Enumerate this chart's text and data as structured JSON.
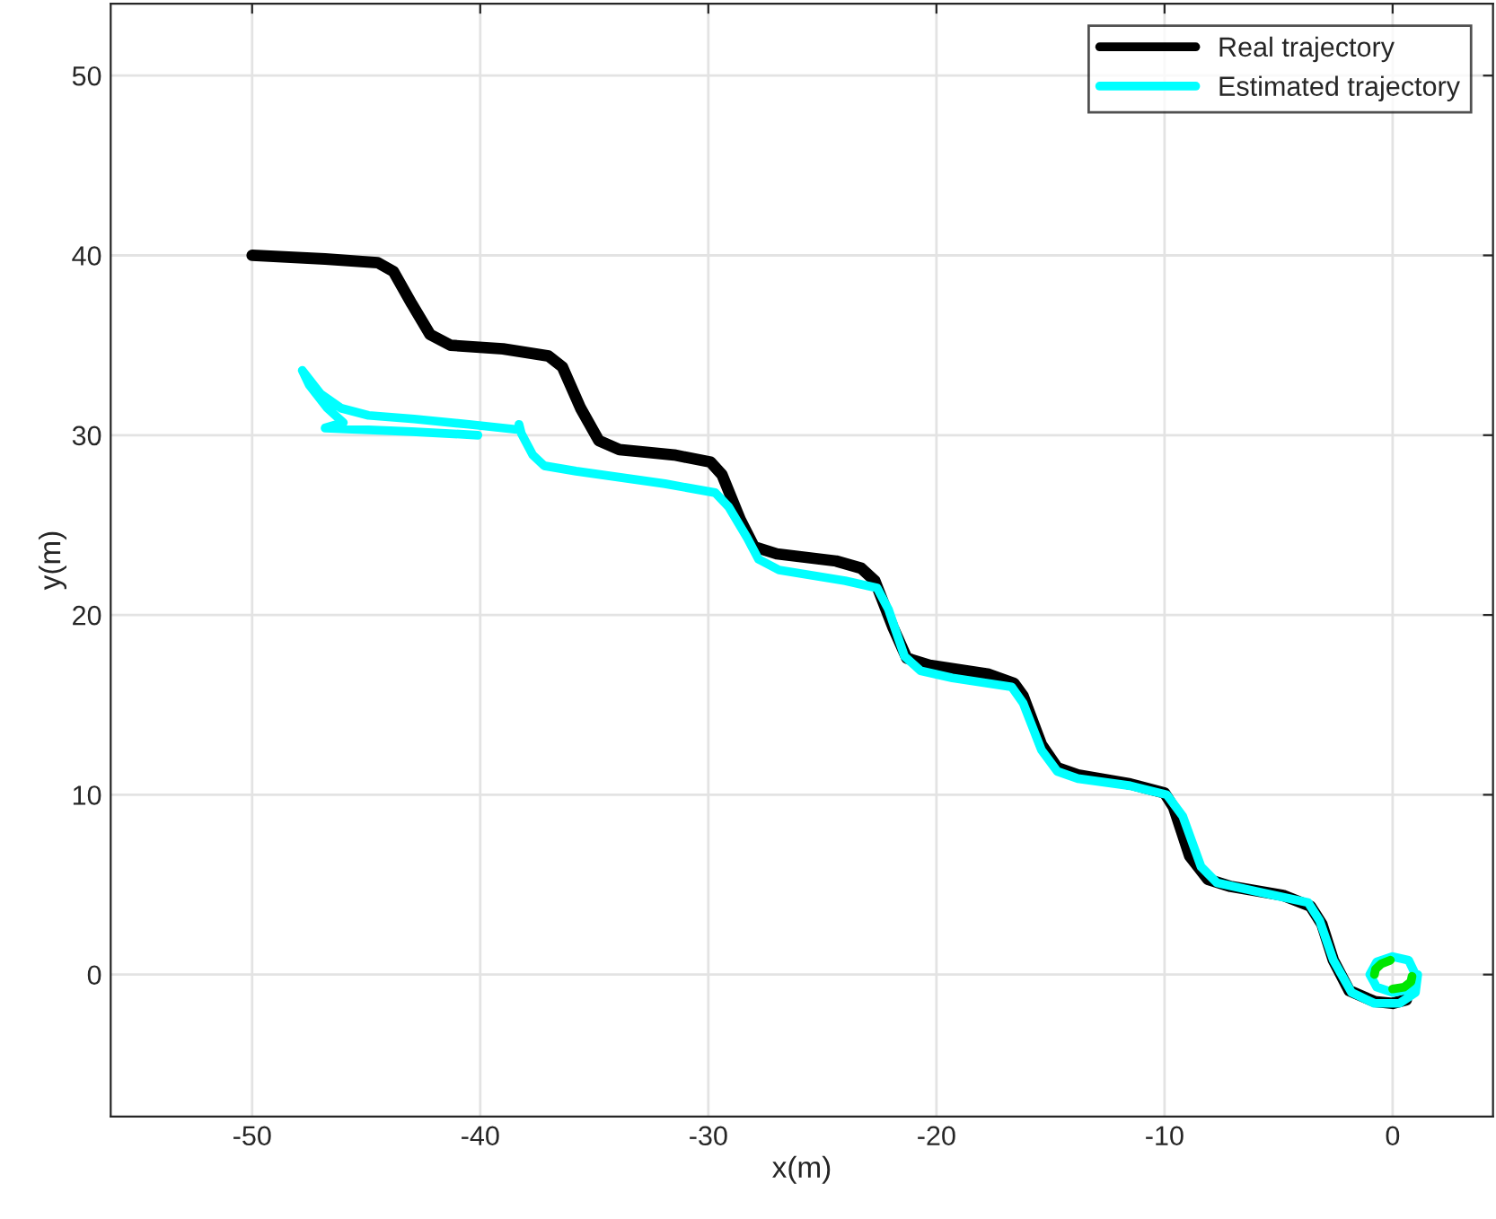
{
  "chart_data": {
    "type": "line",
    "xlabel": "x(m)",
    "ylabel": "y(m)",
    "xlim": [
      -56.2,
      4.4
    ],
    "ylim": [
      -7.9,
      54
    ],
    "xticks": [
      -50,
      -40,
      -30,
      -20,
      -10,
      0
    ],
    "yticks": [
      0,
      10,
      20,
      30,
      40,
      50
    ],
    "grid": true,
    "legend": "top right",
    "marker": "none",
    "line_style": "solid",
    "series": [
      {
        "name": "Real trajectory",
        "color": "#000000",
        "x": [
          -50.0,
          -46.8,
          -44.5,
          -43.8,
          -43.0,
          -42.2,
          -41.3,
          -39.0,
          -37.0,
          -36.4,
          -35.6,
          -34.8,
          -33.9,
          -31.5,
          -29.9,
          -29.4,
          -28.6,
          -28.0,
          -27.0,
          -24.4,
          -23.3,
          -22.7,
          -21.9,
          -21.3,
          -20.3,
          -17.7,
          -16.6,
          -16.2,
          -15.4,
          -14.7,
          -13.8,
          -11.5,
          -10.0,
          -9.6,
          -8.9,
          -8.1,
          -7.1,
          -4.8,
          -3.6,
          -3.1,
          -2.6,
          -1.9,
          -0.8,
          0.0,
          0.6
        ],
        "values": [
          40.0,
          39.8,
          39.6,
          39.1,
          37.3,
          35.6,
          35.0,
          34.8,
          34.4,
          33.8,
          31.5,
          29.7,
          29.2,
          28.9,
          28.5,
          27.8,
          25.3,
          23.8,
          23.4,
          23.0,
          22.6,
          21.9,
          19.3,
          17.6,
          17.2,
          16.7,
          16.2,
          15.5,
          12.8,
          11.5,
          11.1,
          10.6,
          10.1,
          9.3,
          6.6,
          5.3,
          4.9,
          4.4,
          3.8,
          2.8,
          0.8,
          -0.9,
          -1.5,
          -1.6,
          -1.4
        ]
      },
      {
        "name": "Estimated trajectory",
        "color": "#00ffff",
        "x": [
          1.0,
          0.7,
          0.0,
          -0.7,
          -1.0,
          -0.7,
          0.0,
          0.8,
          1.1,
          1.0,
          0.3,
          -0.8,
          -1.8,
          -2.6,
          -3.2,
          -3.7,
          -5.9,
          -7.7,
          -8.4,
          -9.2,
          -9.9,
          -11.5,
          -13.8,
          -14.7,
          -15.4,
          -16.2,
          -16.7,
          -19.3,
          -20.7,
          -21.4,
          -22.1,
          -22.6,
          -24.0,
          -26.9,
          -27.8,
          -28.3,
          -29.1,
          -29.7,
          -31.9,
          -35.8,
          -37.2,
          -37.7,
          -38.2,
          -38.3,
          -38.3,
          -40.5,
          -42.9,
          -44.9,
          -46.1,
          -47.0,
          -47.8,
          -47.5,
          -46.7,
          -46.0,
          -46.8,
          -43.0,
          -40.1
        ],
        "values": [
          0.0,
          0.8,
          1.0,
          0.7,
          0.0,
          -0.7,
          -1.0,
          -0.8,
          0.0,
          -1.0,
          -1.6,
          -1.6,
          -1.0,
          0.8,
          3.0,
          4.0,
          4.6,
          5.1,
          6.0,
          8.8,
          10.0,
          10.5,
          10.9,
          11.3,
          12.5,
          15.1,
          16.0,
          16.5,
          16.9,
          17.7,
          20.3,
          21.5,
          21.9,
          22.5,
          23.1,
          24.3,
          26.0,
          26.8,
          27.3,
          28.0,
          28.3,
          28.9,
          30.1,
          30.6,
          30.3,
          30.6,
          30.9,
          31.1,
          31.5,
          32.3,
          33.6,
          32.8,
          31.5,
          30.7,
          30.4,
          30.2,
          30.0
        ]
      },
      {
        "color": "#00e600",
        "x": [
          -0.1,
          -0.5,
          -0.75,
          -0.8,
          null,
          0.0,
          0.5,
          0.8,
          0.85
        ],
        "values": [
          0.8,
          0.6,
          0.3,
          0.0,
          null,
          -0.8,
          -0.7,
          -0.4,
          -0.1
        ]
      }
    ]
  }
}
